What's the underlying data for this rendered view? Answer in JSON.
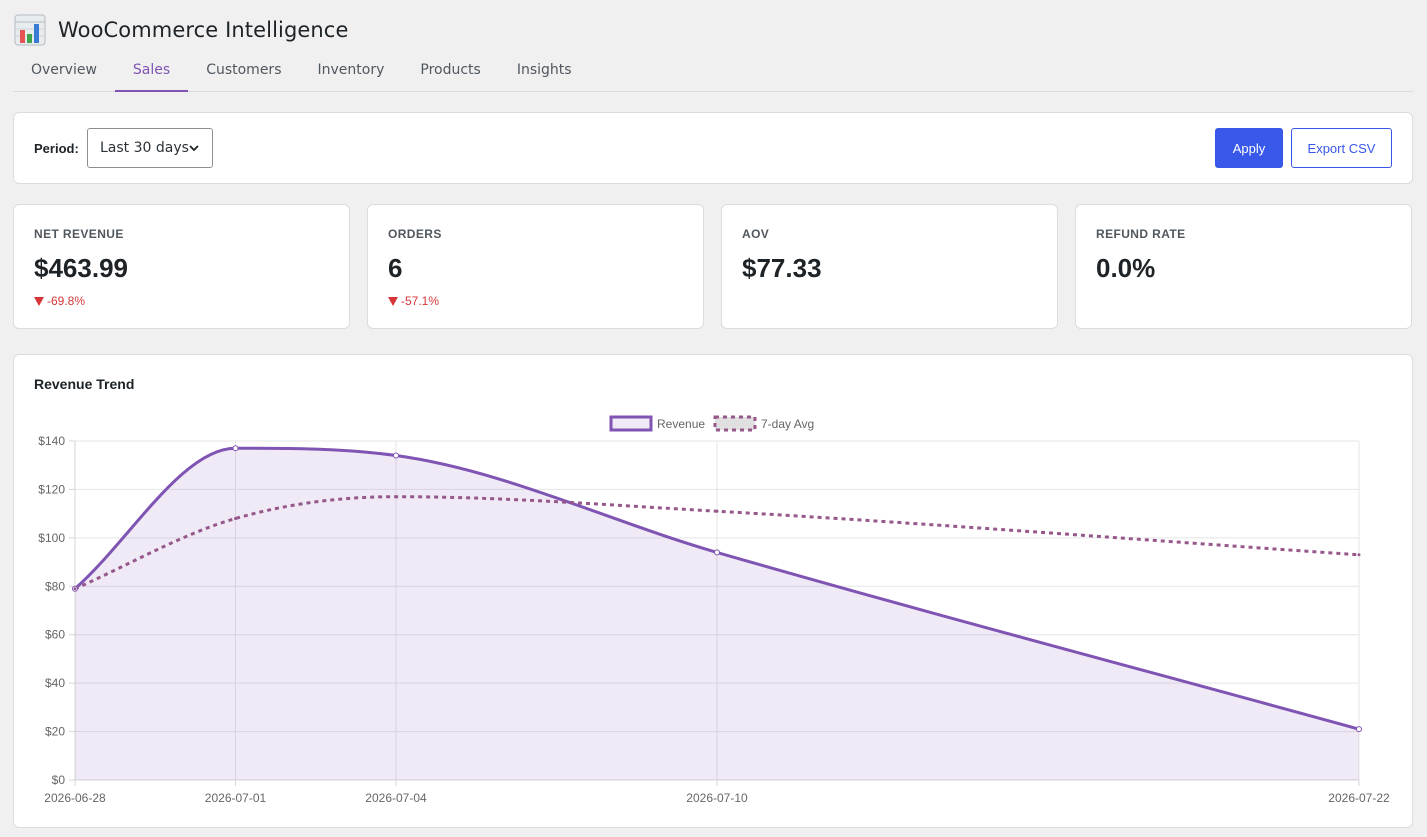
{
  "app": {
    "title": "WooCommerce Intelligence",
    "icon": "bar-chart-icon"
  },
  "tabs": [
    {
      "label": "Overview",
      "active": false
    },
    {
      "label": "Sales",
      "active": true
    },
    {
      "label": "Customers",
      "active": false
    },
    {
      "label": "Inventory",
      "active": false
    },
    {
      "label": "Products",
      "active": false
    },
    {
      "label": "Insights",
      "active": false
    }
  ],
  "filters": {
    "period_label": "Period:",
    "period_value": "Last 30 days",
    "apply_label": "Apply",
    "export_label": "Export CSV"
  },
  "kpis": [
    {
      "label": "NET REVENUE",
      "value": "$463.99",
      "delta": "-69.8%",
      "direction": "down"
    },
    {
      "label": "ORDERS",
      "value": "6",
      "delta": "-57.1%",
      "direction": "down"
    },
    {
      "label": "AOV",
      "value": "$77.33",
      "delta": "",
      "direction": ""
    },
    {
      "label": "REFUND RATE",
      "value": "0.0%",
      "delta": "",
      "direction": ""
    }
  ],
  "colors": {
    "accent": "#7f54b3",
    "primary_button": "#3858e9",
    "negative": "#d63638",
    "avg_line": "#96588a"
  },
  "chart_data": {
    "type": "line",
    "title": "Revenue Trend",
    "x": [
      "2026-06-28",
      "2026-07-01",
      "2026-07-04",
      "2026-07-10",
      "2026-07-22"
    ],
    "series": [
      {
        "name": "Revenue",
        "values": [
          79,
          137,
          134,
          94,
          21
        ],
        "fill": true,
        "style": "solid"
      },
      {
        "name": "7-day Avg",
        "values": [
          79,
          108,
          117,
          111,
          93
        ],
        "fill": false,
        "style": "dashed"
      }
    ],
    "y_ticks": [
      "$0",
      "$20",
      "$40",
      "$60",
      "$80",
      "$100",
      "$120",
      "$140"
    ],
    "ylim": [
      0,
      140
    ],
    "grid": true,
    "legend": "top"
  }
}
